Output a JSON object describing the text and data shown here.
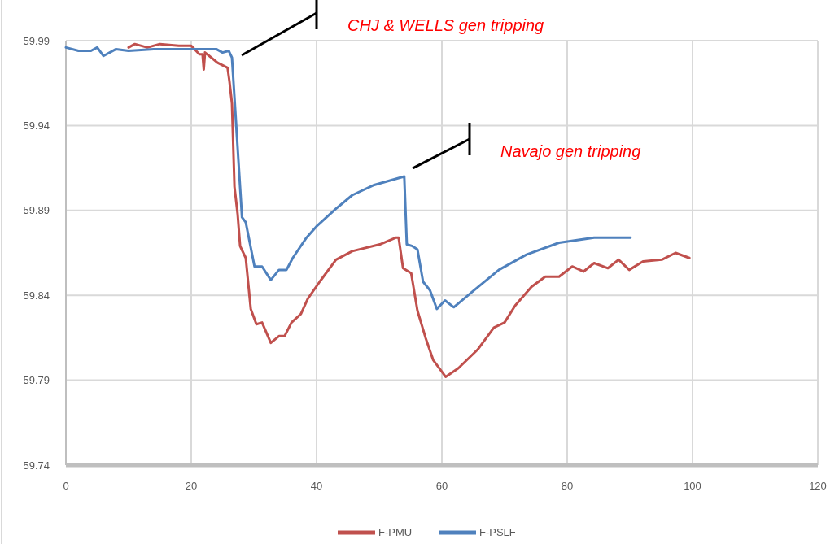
{
  "chart_data": {
    "type": "line",
    "xlim": [
      0,
      120
    ],
    "xticks": [
      0,
      20,
      40,
      60,
      80,
      100,
      120
    ],
    "ylim": [
      59.74,
      59.99
    ],
    "yticks": [
      59.74,
      59.79,
      59.84,
      59.89,
      59.94,
      59.99
    ],
    "grid": true,
    "legend": "bottom",
    "line_style": "solid",
    "marker": "none",
    "series": [
      {
        "name": "F-PMU",
        "color": "#c0504d",
        "x": [
          10,
          11,
          13,
          15,
          18,
          20,
          21.3,
          21.8,
          22,
          22.2,
          24.2,
          25.8,
          26.1,
          26.5,
          26.9,
          27.4,
          27.8,
          28.7,
          29.5,
          30.4,
          31.3,
          32.7,
          34.0,
          34.9,
          36.0,
          37.5,
          38.6,
          40.5,
          43.1,
          45.7,
          50.1,
          52.7,
          53.1,
          53.8,
          55.1,
          56.1,
          57.4,
          58.6,
          60.6,
          62.6,
          65.7,
          68.3,
          70.0,
          71.7,
          74.3,
          76.5,
          78.7,
          80.8,
          82.6,
          84.3,
          86.5,
          88.2,
          89.9,
          92.1,
          95.1,
          97.3,
          99.5
        ],
        "values": [
          59.986,
          59.988,
          59.986,
          59.988,
          59.987,
          59.987,
          59.982,
          59.982,
          59.973,
          59.983,
          59.977,
          59.974,
          59.966,
          59.953,
          59.904,
          59.888,
          59.869,
          59.862,
          59.832,
          59.823,
          59.824,
          59.812,
          59.816,
          59.816,
          59.824,
          59.829,
          59.838,
          59.848,
          59.861,
          59.866,
          59.87,
          59.874,
          59.874,
          59.856,
          59.853,
          59.831,
          59.815,
          59.802,
          59.792,
          59.797,
          59.808,
          59.821,
          59.824,
          59.834,
          59.845,
          59.851,
          59.851,
          59.857,
          59.854,
          59.859,
          59.856,
          59.861,
          59.855,
          59.86,
          59.861,
          59.865,
          59.862
        ]
      },
      {
        "name": "F-PSLF",
        "color": "#4f81bd",
        "x": [
          0,
          2,
          4,
          5,
          6,
          8,
          10,
          14,
          20,
          24,
          25,
          26,
          26.5,
          28.1,
          28.7,
          30.1,
          31.3,
          32.7,
          34.0,
          35.2,
          36.2,
          38.4,
          40.1,
          43.1,
          45.7,
          49.2,
          54.0,
          54.4,
          55.3,
          56.1,
          57.0,
          58.1,
          59.2,
          60.5,
          61.9,
          64.8,
          69.1,
          73.5,
          78.7,
          84.3,
          90.1
        ],
        "values": [
          59.986,
          59.984,
          59.984,
          59.986,
          59.981,
          59.985,
          59.984,
          59.985,
          59.985,
          59.985,
          59.983,
          59.984,
          59.98,
          59.886,
          59.883,
          59.857,
          59.857,
          59.849,
          59.855,
          59.855,
          59.862,
          59.874,
          59.881,
          59.891,
          59.899,
          59.905,
          59.91,
          59.87,
          59.869,
          59.867,
          59.848,
          59.843,
          59.832,
          59.837,
          59.833,
          59.842,
          59.855,
          59.864,
          59.871,
          59.874,
          59.874
        ]
      }
    ],
    "annotations": [
      "CHJ & WELLS gen tripping",
      "Navajo gen tripping"
    ]
  }
}
